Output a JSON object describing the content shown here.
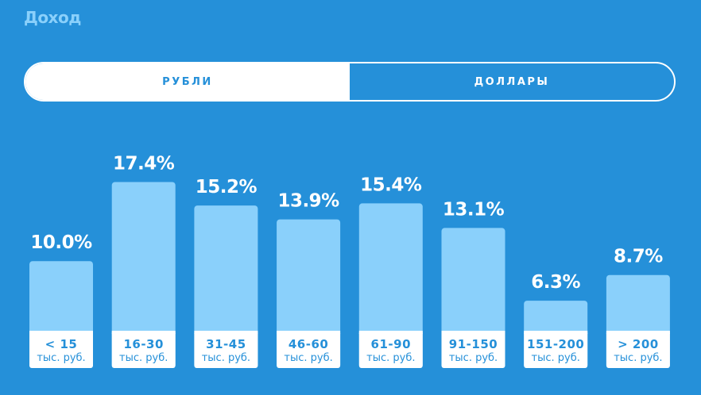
{
  "header": {
    "title": "Доход"
  },
  "currency_toggle": {
    "options": [
      {
        "label": "РУБЛИ",
        "active": true
      },
      {
        "label": "ДОЛЛАРЫ",
        "active": false
      }
    ]
  },
  "colors": {
    "background": "#2590d9",
    "bar": "#8ad0fb",
    "label_box": "#ffffff",
    "text_accent": "#2590d9"
  },
  "chart_data": {
    "type": "bar",
    "categories": [
      "< 15",
      "16-30",
      "31-45",
      "46-60",
      "61-90",
      "91-150",
      "151-200",
      "> 200"
    ],
    "category_units": [
      "тыс. руб.",
      "тыс. руб.",
      "тыс. руб.",
      "тыс. руб.",
      "тыс. руб.",
      "тыс. руб.",
      "тыс. руб.",
      "тыс. руб."
    ],
    "values": [
      10.0,
      17.4,
      15.2,
      13.9,
      15.4,
      13.1,
      6.3,
      8.7
    ],
    "value_labels": [
      "10.0%",
      "17.4%",
      "15.2%",
      "13.9%",
      "15.4%",
      "13.1%",
      "6.3%",
      "8.7%"
    ],
    "unit": "%",
    "title": "",
    "xlabel": "",
    "ylabel": "",
    "grid": false,
    "legend": "none"
  }
}
